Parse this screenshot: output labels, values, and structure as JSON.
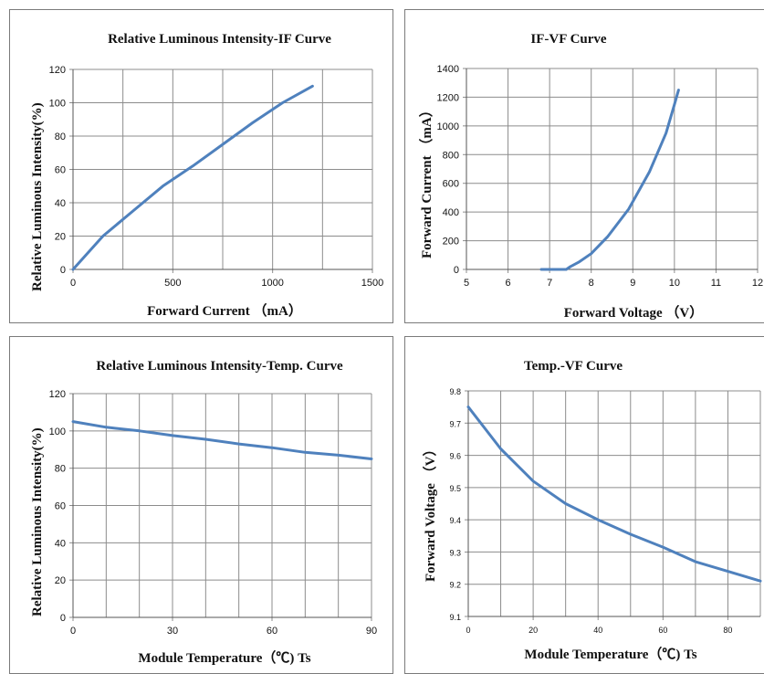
{
  "colors": {
    "line": "#4f81bd",
    "grid": "#8c8c8c",
    "axis": "#555555"
  },
  "chart_data": [
    {
      "type": "line",
      "title": "Relative Luminous Intensity-IF Curve",
      "xlabel": "Forward Current （mA）",
      "ylabel": "Relative Luminous Intensity(%)",
      "xlim": [
        0,
        1500
      ],
      "ylim": [
        0,
        120
      ],
      "xticks": [
        0,
        500,
        1000,
        1500
      ],
      "xgrid": [
        0,
        250,
        500,
        750,
        1000,
        1250,
        1500
      ],
      "yticks": [
        0,
        20,
        40,
        60,
        80,
        100,
        120
      ],
      "x": [
        0,
        150,
        300,
        450,
        600,
        750,
        900,
        1050,
        1200
      ],
      "y": [
        0,
        20,
        35,
        50,
        62,
        75,
        88,
        100,
        110
      ]
    },
    {
      "type": "line",
      "title": "IF-VF Curve",
      "xlabel": "Forward Voltage （V）",
      "ylabel": "Forward Current （mA）",
      "xlim": [
        5,
        12
      ],
      "ylim": [
        0,
        1400
      ],
      "xticks": [
        5,
        6,
        7,
        8,
        9,
        10,
        11,
        12
      ],
      "xgrid": [
        5,
        6,
        7,
        8,
        9,
        10,
        11,
        12
      ],
      "yticks": [
        0,
        200,
        400,
        600,
        800,
        1000,
        1200,
        1400
      ],
      "x": [
        6.8,
        7.0,
        7.2,
        7.4,
        7.5,
        7.7,
        8.0,
        8.4,
        8.9,
        9.4,
        9.8,
        10.0,
        10.1
      ],
      "y": [
        0,
        0,
        0,
        0,
        20,
        50,
        110,
        230,
        420,
        680,
        950,
        1150,
        1250
      ]
    },
    {
      "type": "line",
      "title": "Relative Luminous Intensity-Temp. Curve",
      "xlabel": "Module Temperature（℃) Ts",
      "ylabel": "Relative Luminous Intensity(%)",
      "xlim": [
        0,
        90
      ],
      "ylim": [
        0,
        120
      ],
      "xticks": [
        0,
        30,
        60,
        90
      ],
      "xgrid": [
        0,
        10,
        20,
        30,
        40,
        50,
        60,
        70,
        80,
        90
      ],
      "yticks": [
        0,
        20,
        40,
        60,
        80,
        100,
        120
      ],
      "x": [
        0,
        10,
        20,
        30,
        40,
        50,
        60,
        70,
        80,
        90
      ],
      "y": [
        105,
        102,
        100,
        97.5,
        95.5,
        93,
        91,
        88.5,
        87,
        85
      ]
    },
    {
      "type": "line",
      "title": "Temp.-VF Curve",
      "xlabel": "Module Temperature（℃) Ts",
      "ylabel": "Forward Voltage （V）",
      "xlim": [
        0,
        90
      ],
      "ylim": [
        9.1,
        9.8
      ],
      "xticks": [
        0,
        20,
        40,
        60,
        80
      ],
      "xgrid": [
        0,
        10,
        20,
        30,
        40,
        50,
        60,
        70,
        80,
        90
      ],
      "yticks": [
        9.1,
        9.2,
        9.3,
        9.4,
        9.5,
        9.6,
        9.7,
        9.8
      ],
      "x": [
        0,
        10,
        20,
        30,
        40,
        50,
        60,
        70,
        80,
        90
      ],
      "y": [
        9.75,
        9.62,
        9.52,
        9.45,
        9.4,
        9.355,
        9.315,
        9.27,
        9.24,
        9.21
      ]
    }
  ]
}
